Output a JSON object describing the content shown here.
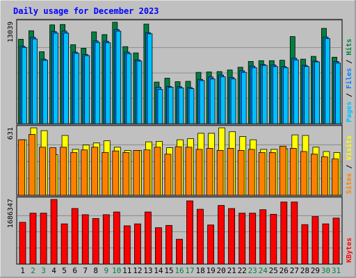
{
  "chart_data": {
    "type": "bar",
    "title": "Daily usage for December 2023",
    "colors": {
      "background": "#c0c0c0",
      "title": "#0000ff",
      "hits": "#008040",
      "files": "#0080ff",
      "pages": "#00c0ff",
      "visits": "#ffff00",
      "sites": "#ff8000",
      "kbytes": "#ff0000",
      "weekend_label": "#008040"
    },
    "categories": [
      "1",
      "2",
      "3",
      "4",
      "5",
      "6",
      "7",
      "8",
      "9",
      "10",
      "11",
      "12",
      "13",
      "14",
      "15",
      "16",
      "17",
      "18",
      "19",
      "20",
      "21",
      "22",
      "23",
      "24",
      "25",
      "26",
      "27",
      "28",
      "29",
      "30",
      "31"
    ],
    "weekend_days": [
      "2",
      "3",
      "9",
      "10",
      "16",
      "17",
      "23",
      "24",
      "30",
      "31"
    ],
    "panels": [
      {
        "id": "top",
        "max_label": "13039",
        "ymax": 13039,
        "legend": [
          {
            "text": "Pages",
            "color": "#00c0ff"
          },
          {
            "text": " / ",
            "color": "#000000"
          },
          {
            "text": "Files",
            "color": "#0080ff"
          },
          {
            "text": " / ",
            "color": "#000000"
          },
          {
            "text": "Hits",
            "color": "#008040"
          }
        ],
        "series": [
          {
            "name": "Hits",
            "values": [
              10850,
              11950,
              9250,
              12700,
              12750,
              10150,
              9700,
              11800,
              11450,
              13039,
              9900,
              9100,
              12800,
              5350,
              5850,
              5400,
              5450,
              6600,
              6650,
              6700,
              6900,
              7250,
              8000,
              8100,
              8100,
              8150,
              11200,
              8300,
              8650,
              12250,
              8550
            ]
          },
          {
            "name": "Files",
            "values": [
              9950,
              11100,
              8300,
              11850,
              11900,
              9200,
              8900,
              10650,
              10600,
              12100,
              9200,
              8200,
              11700,
              4700,
              4800,
              4750,
              4650,
              5700,
              6000,
              6250,
              5950,
              6800,
              7400,
              7600,
              7550,
              7350,
              8400,
              7500,
              8050,
              11150,
              8000
            ]
          },
          {
            "name": "Pages",
            "values": [
              9800,
              10900,
              8150,
              11650,
              11650,
              9050,
              8750,
              10450,
              10400,
              11900,
              9000,
              8050,
              11550,
              4400,
              4700,
              4600,
              4500,
              5550,
              5750,
              6050,
              5750,
              6600,
              7200,
              7500,
              7350,
              7200,
              8200,
              7350,
              7950,
              10950,
              7800
            ]
          }
        ]
      },
      {
        "id": "middle",
        "max_label": "631",
        "ymax": 631,
        "legend": [
          {
            "text": "Sites",
            "color": "#ff8000"
          },
          {
            "text": " / ",
            "color": "#000000"
          },
          {
            "text": "Visits",
            "color": "#ffff00"
          }
        ],
        "series": [
          {
            "name": "Visits",
            "values": [
              520,
              631,
              605,
              380,
              560,
              430,
              470,
              490,
              510,
              450,
              420,
              420,
              500,
              505,
              445,
              520,
              530,
              580,
              580,
              631,
              595,
              550,
              520,
              430,
              430,
              435,
              565,
              560,
              450,
              410,
              400
            ]
          },
          {
            "name": "Sites",
            "values": [
              520,
              570,
              450,
              445,
              450,
              400,
              425,
              450,
              400,
              415,
              400,
              420,
              425,
              450,
              385,
              455,
              450,
              430,
              440,
              420,
              440,
              420,
              430,
              400,
              400,
              460,
              440,
              410,
              385,
              360,
              340
            ]
          }
        ]
      },
      {
        "id": "bottom",
        "max_label": "1686347",
        "ymax": 1686347,
        "legend": [
          {
            "text": "KBytes",
            "color": "#ff0000"
          }
        ],
        "series": [
          {
            "name": "KBytes",
            "values": [
              1090000,
              1330000,
              1330000,
              1686347,
              1050000,
              1450000,
              1290000,
              1190000,
              1290000,
              1360000,
              1000000,
              1050000,
              1360000,
              950000,
              1010000,
              650000,
              1650000,
              1430000,
              1020000,
              1530000,
              1450000,
              1330000,
              1330000,
              1420000,
              1300000,
              1620000,
              1620000,
              1030000,
              1240000,
              1050000,
              1200000
            ]
          }
        ]
      }
    ]
  }
}
